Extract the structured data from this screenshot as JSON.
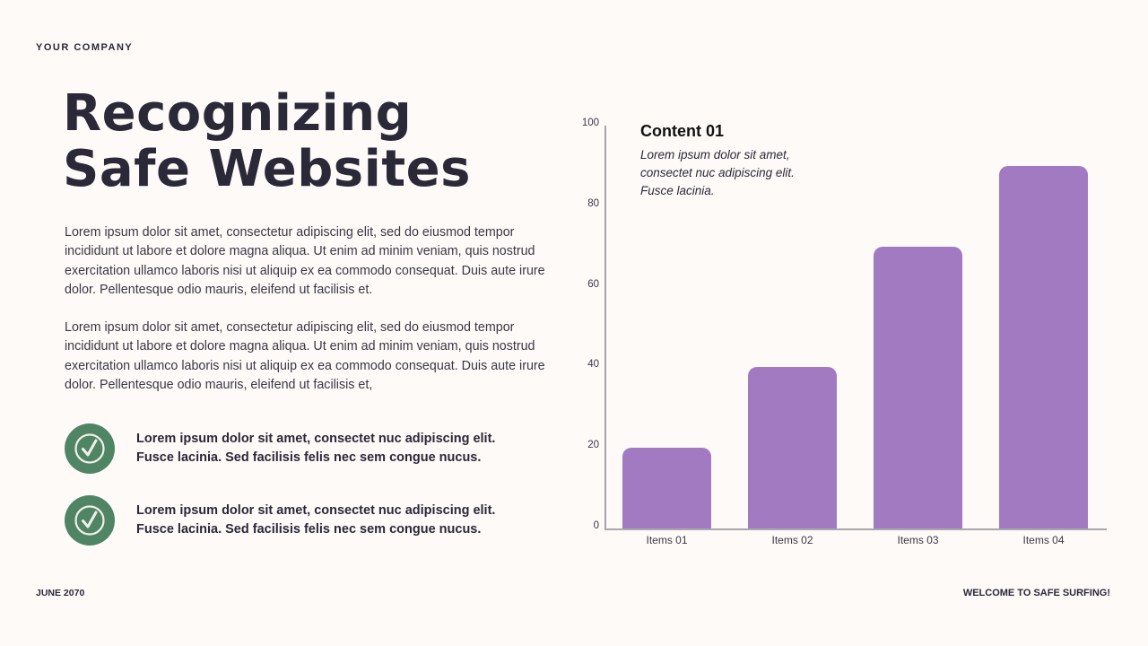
{
  "header": {
    "company": "YOUR COMPANY"
  },
  "title": {
    "line1": "Recognizing",
    "line2": "Safe Websites"
  },
  "paragraphs": [
    "Lorem ipsum dolor sit amet, consectetur adipiscing elit, sed do eiusmod tempor incididunt ut labore et dolore magna aliqua. Ut enim ad minim veniam, quis nostrud exercitation ullamco laboris nisi ut aliquip ex ea commodo consequat. Duis aute irure dolor. Pellentesque odio mauris, eleifend ut facilisis et.",
    "Lorem ipsum dolor sit amet, consectetur adipiscing elit, sed do eiusmod tempor incididunt ut labore et dolore magna aliqua. Ut enim ad minim veniam, quis nostrud exercitation ullamco laboris nisi ut aliquip ex ea commodo consequat. Duis aute irure dolor. Pellentesque odio mauris, eleifend ut facilisis et,"
  ],
  "checklist": [
    {
      "icon": "check-circle-icon",
      "text": "Lorem ipsum dolor sit amet, consectet nuc adipiscing elit. Fusce lacinia. Sed facilisis felis nec sem congue nucus."
    },
    {
      "icon": "check-circle-icon",
      "text": "Lorem ipsum dolor sit amet, consectet nuc adipiscing elit. Fusce lacinia. Sed facilisis felis nec sem congue nucus."
    }
  ],
  "footer": {
    "date": "JUNE 2070",
    "tagline": "WELCOME TO SAFE SURFING!"
  },
  "colors": {
    "background": "#fdfaf8",
    "text": "#2b2838",
    "accent_green": "#4f8565",
    "bar": "#a27ac2",
    "axis": "#a9a6ad"
  },
  "chart_data": {
    "type": "bar",
    "title": "",
    "categories": [
      "Items 01",
      "Items 02",
      "Items 03",
      "Items 04"
    ],
    "values": [
      20,
      40,
      70,
      90
    ],
    "yticks": [
      0,
      20,
      40,
      60,
      80,
      100
    ],
    "ylim": [
      0,
      100
    ],
    "xlabel": "",
    "ylabel": "",
    "grid": false,
    "legend": null,
    "annotation": {
      "title": "Content 01",
      "text": "Lorem ipsum dolor sit amet, consectet nuc adipiscing elit. Fusce lacinia."
    }
  }
}
